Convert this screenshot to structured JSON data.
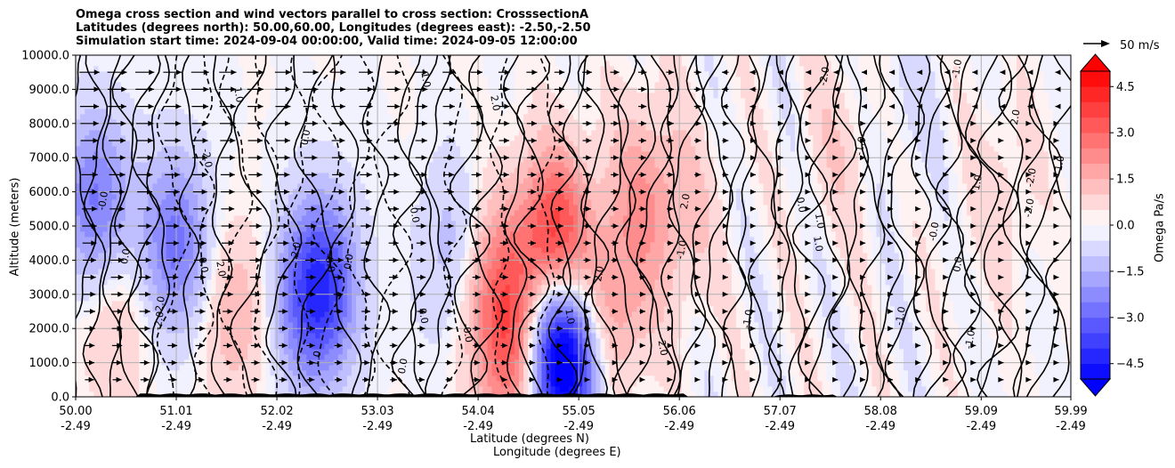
{
  "chart_data": {
    "type": "heatmap",
    "title_lines": [
      "Omega cross section and wind vectors parallel to cross section: CrosssectionA",
      "Latitudes (degrees north): 50.00,60.00, Longitudes (degrees east): -2.50,-2.50",
      "Simulation start time: 2024-09-04 00:00:00, Valid time: 2024-09-05 12:00:00"
    ],
    "ylabel": "Altitude (meters)",
    "xlabel_lines": [
      "Latitude (degrees N)",
      "Longitude (degrees E)"
    ],
    "colorbar_label": "Omega Pa/s",
    "quiver_key": "50 m/s",
    "ylim": [
      0,
      10000
    ],
    "xlim": [
      50.0,
      59.99
    ],
    "yticks": [
      "0.0",
      "1000.0",
      "2000.0",
      "3000.0",
      "4000.0",
      "5000.0",
      "6000.0",
      "7000.0",
      "8000.0",
      "9000.0",
      "10000.0"
    ],
    "xticks": [
      {
        "lat": "50.00",
        "lon": "-2.49"
      },
      {
        "lat": "51.01",
        "lon": "-2.49"
      },
      {
        "lat": "52.02",
        "lon": "-2.49"
      },
      {
        "lat": "53.03",
        "lon": "-2.49"
      },
      {
        "lat": "54.04",
        "lon": "-2.49"
      },
      {
        "lat": "55.05",
        "lon": "-2.49"
      },
      {
        "lat": "56.06",
        "lon": "-2.49"
      },
      {
        "lat": "57.07",
        "lon": "-2.49"
      },
      {
        "lat": "58.08",
        "lon": "-2.49"
      },
      {
        "lat": "59.09",
        "lon": "-2.49"
      },
      {
        "lat": "59.99",
        "lon": "-2.49"
      }
    ],
    "colorbar_ticks": [
      "4.5",
      "3.0",
      "1.5",
      "0.0",
      "−1.5",
      "−3.0",
      "−4.5"
    ],
    "colorbar_range": [
      -5.0,
      5.0
    ],
    "colormap": "bwr",
    "grid": true,
    "contour_labels": [
      "0.0",
      "1.0",
      "-1.0",
      "2.0",
      "-2.0",
      "-0.0"
    ],
    "omega_features": [
      {
        "lat": 50.2,
        "z": 5700,
        "omega": -2.4
      },
      {
        "lat": 51.0,
        "z": 4500,
        "omega": -2.5
      },
      {
        "lat": 52.5,
        "z": 3300,
        "omega": -2.8
      },
      {
        "lat": 52.3,
        "z": 2800,
        "omega": -1.8
      },
      {
        "lat": 51.6,
        "z": 2500,
        "omega": 1.2
      },
      {
        "lat": 50.4,
        "z": 2300,
        "omega": 0.9
      },
      {
        "lat": 53.8,
        "z": 4200,
        "omega": -1.2
      },
      {
        "lat": 54.2,
        "z": 3200,
        "omega": 2.2
      },
      {
        "lat": 54.5,
        "z": 1200,
        "omega": 5.5
      },
      {
        "lat": 54.65,
        "z": 1400,
        "omega": -5.5
      },
      {
        "lat": 54.8,
        "z": 4400,
        "omega": 4.2
      },
      {
        "lat": 54.95,
        "z": 1200,
        "omega": -4.5
      },
      {
        "lat": 55.35,
        "z": 2500,
        "omega": 2.0
      },
      {
        "lat": 55.7,
        "z": 6000,
        "omega": 1.5
      },
      {
        "lat": 56.1,
        "z": 5000,
        "omega": 0.8
      },
      {
        "lat": 57.7,
        "z": 7500,
        "omega": 0.6
      },
      {
        "lat": 58.3,
        "z": 8500,
        "omega": -0.4
      },
      {
        "lat": 59.3,
        "z": 6000,
        "omega": 0.5
      }
    ]
  }
}
